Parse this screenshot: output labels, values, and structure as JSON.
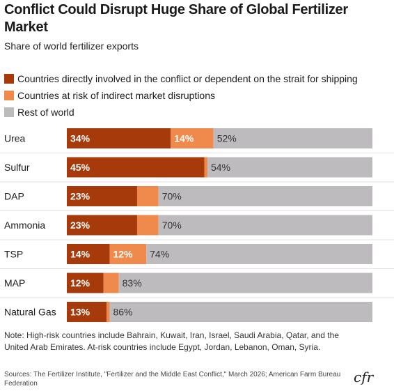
{
  "header": {
    "title": "Conflict Could Disrupt Huge Share of Global Fertilizer Market",
    "subtitle": "Share of world fertilizer exports"
  },
  "legend": [
    {
      "label": "Countries directly involved in the conflict or dependent on the strait for shipping",
      "color": "#a63a0a"
    },
    {
      "label": "Countries at risk of indirect market disruptions",
      "color": "#ef8a4c"
    },
    {
      "label": "Rest of world",
      "color": "#bdbbbd"
    }
  ],
  "chart_data": {
    "type": "bar",
    "stacked": true,
    "orientation": "horizontal",
    "categories": [
      "Urea",
      "Sulfur",
      "DAP",
      "Ammonia",
      "TSP",
      "MAP",
      "Natural Gas"
    ],
    "series": [
      {
        "name": "Countries directly involved in the conflict or dependent on the strait for shipping",
        "values": [
          34,
          45,
          23,
          23,
          14,
          12,
          13
        ],
        "labels": [
          "34%",
          "45%",
          "23%",
          "23%",
          "14%",
          "12%",
          "13%"
        ],
        "color": "#a63a0a"
      },
      {
        "name": "Countries at risk of indirect market disruptions",
        "values": [
          14,
          1,
          7,
          7,
          12,
          5,
          1
        ],
        "labels": [
          "14%",
          "",
          "",
          "",
          "12%",
          "",
          ""
        ],
        "color": "#ef8a4c"
      },
      {
        "name": "Rest of world",
        "values": [
          52,
          54,
          70,
          70,
          74,
          83,
          86
        ],
        "labels": [
          "52%",
          "54%",
          "70%",
          "70%",
          "74%",
          "83%",
          "86%"
        ],
        "color": "#bdbbbd"
      }
    ],
    "xlim": [
      0,
      100
    ],
    "grid": false,
    "legend_position": "top"
  },
  "footer": {
    "note": "Note: High-risk countries include Bahrain, Kuwait, Iran, Israel, Saudi Arabia, Qatar, and the United Arab Emirates. At-risk countries include Egypt, Jordan, Lebanon, Oman, Syria.",
    "sources": "Sources: The Fertilizer Institute, \"Fertilizer and the Middle East Conflict,\" March 2026; American Farm Bureau Federation",
    "logo": "cfr"
  }
}
